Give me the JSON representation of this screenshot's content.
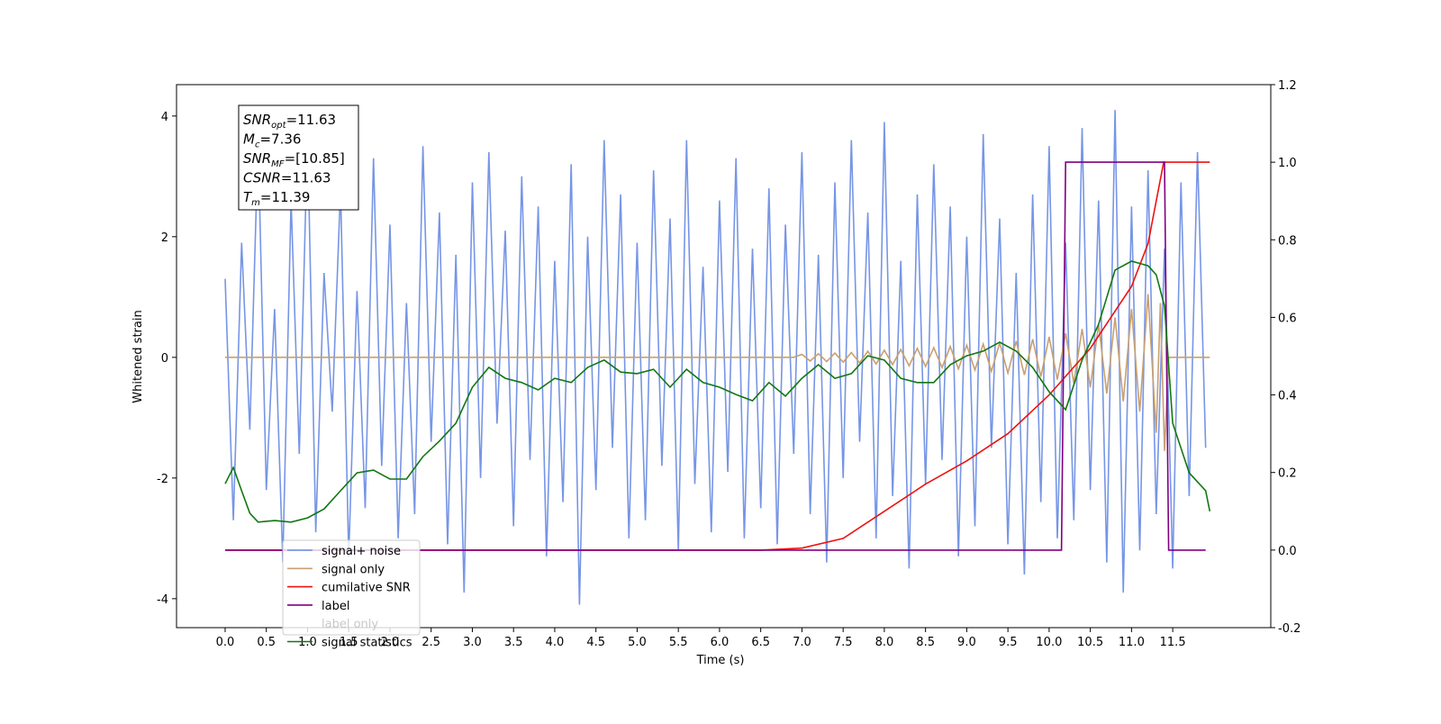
{
  "chart_data": {
    "type": "line",
    "xlabel": "Time (s)",
    "ylabel": "Whitened strain",
    "xlim": [
      -0.59,
      12.69
    ],
    "ylim": [
      -4.48,
      4.52
    ],
    "y2lim": [
      -0.2,
      1.2
    ],
    "xticks": [
      {
        "value": 0,
        "label": "0.0"
      },
      0.5,
      {
        "value": 1,
        "label": "1.0"
      },
      1.5,
      {
        "value": 2,
        "label": "2.0"
      },
      2.5,
      {
        "value": 3,
        "label": "3.0"
      },
      3.5,
      {
        "value": 4,
        "label": "4.0"
      },
      4.5,
      {
        "value": 5,
        "label": "5.0"
      },
      5.5,
      {
        "value": 6,
        "label": "6.0"
      },
      6.5,
      {
        "value": 7,
        "label": "7.0"
      },
      7.5,
      {
        "value": 8,
        "label": "8.0"
      },
      8.5,
      {
        "value": 9,
        "label": "9.0"
      },
      9.5,
      {
        "value": 10,
        "label": "10.0"
      },
      10.5,
      {
        "value": 11,
        "label": "11.0"
      },
      11.5
    ],
    "yticks": [
      -4,
      -2,
      0,
      2,
      4
    ],
    "y2ticks": [
      -0.2,
      {
        "value": 0,
        "label": "0.0"
      },
      0.2,
      0.4,
      0.6,
      0.8,
      {
        "value": 1,
        "label": "1.0"
      },
      1.2
    ],
    "annotation": [
      {
        "main": "SNR",
        "sub": "opt",
        "rest": "=11.63"
      },
      {
        "main": "M",
        "sub": "c",
        "rest": "=7.36"
      },
      {
        "main": "SNR",
        "sub": "MF",
        "rest": "=[10.85]"
      },
      {
        "main": "CSNR",
        "sub": "",
        "rest": "=11.63"
      },
      {
        "main": "T",
        "sub": "m",
        "rest": "=11.39"
      }
    ],
    "legend_ghost": "label only",
    "series": [
      {
        "name": "signal+ noise",
        "color": "#6f8fe5",
        "axis": "y",
        "x": [
          0,
          0.1,
          0.2,
          0.3,
          0.4,
          0.5,
          0.6,
          0.7,
          0.8,
          0.9,
          1,
          1.1,
          1.2,
          1.3,
          1.4,
          1.5,
          1.6,
          1.7,
          1.8,
          1.9,
          2,
          2.1,
          2.2,
          2.3,
          2.4,
          2.5,
          2.6,
          2.7,
          2.8,
          2.9,
          3,
          3.1,
          3.2,
          3.3,
          3.4,
          3.5,
          3.6,
          3.7,
          3.8,
          3.9,
          4,
          4.1,
          4.2,
          4.3,
          4.4,
          4.5,
          4.6,
          4.7,
          4.8,
          4.9,
          5,
          5.1,
          5.2,
          5.3,
          5.4,
          5.5,
          5.6,
          5.7,
          5.8,
          5.9,
          6,
          6.1,
          6.2,
          6.3,
          6.4,
          6.5,
          6.6,
          6.7,
          6.8,
          6.9,
          7,
          7.1,
          7.2,
          7.3,
          7.4,
          7.5,
          7.6,
          7.7,
          7.8,
          7.9,
          8,
          8.1,
          8.2,
          8.3,
          8.4,
          8.5,
          8.6,
          8.7,
          8.8,
          8.9,
          9,
          9.1,
          9.2,
          9.3,
          9.4,
          9.5,
          9.6,
          9.7,
          9.8,
          9.9,
          10,
          10.1,
          10.2,
          10.3,
          10.4,
          10.5,
          10.6,
          10.7,
          10.8,
          10.9,
          11,
          11.1,
          11.2,
          11.3,
          11.4,
          11.5,
          11.6,
          11.7,
          11.8,
          11.9
        ],
        "values": [
          1.3,
          -2.7,
          1.9,
          -1.2,
          3.6,
          -2.2,
          0.8,
          -3.4,
          2.6,
          -1.6,
          3.7,
          -2.9,
          1.4,
          -0.9,
          2.8,
          -3.3,
          1.1,
          -2.5,
          3.3,
          -1.8,
          2.2,
          -3.0,
          0.9,
          -2.6,
          3.5,
          -1.4,
          2.4,
          -3.1,
          1.7,
          -3.9,
          2.9,
          -2.0,
          3.4,
          -1.1,
          2.1,
          -2.8,
          3.0,
          -1.7,
          2.5,
          -3.3,
          1.6,
          -2.4,
          3.2,
          -4.1,
          2.0,
          -2.2,
          3.6,
          -1.5,
          2.7,
          -3.0,
          1.9,
          -2.7,
          3.1,
          -1.8,
          2.3,
          -3.2,
          3.6,
          -2.1,
          1.5,
          -2.9,
          2.6,
          -1.9,
          3.3,
          -3.0,
          1.8,
          -2.5,
          2.8,
          -3.1,
          2.2,
          -1.6,
          3.4,
          -2.6,
          1.7,
          -3.4,
          2.9,
          -2.0,
          3.6,
          -1.4,
          2.4,
          -3.0,
          3.9,
          -2.3,
          1.6,
          -3.5,
          2.7,
          -2.1,
          3.2,
          -1.7,
          2.5,
          -3.3,
          2.0,
          -2.8,
          3.7,
          -1.5,
          2.3,
          -3.1,
          1.4,
          -3.6,
          2.7,
          -2.4,
          3.5,
          -3.0,
          1.9,
          -2.7,
          3.8,
          -2.2,
          2.6,
          -3.4,
          4.1,
          -3.9,
          2.5,
          -3.2,
          3.1,
          -2.6,
          1.8,
          -3.5,
          2.9,
          -2.3,
          3.4,
          -1.5
        ]
      },
      {
        "name": "signal only",
        "color": "#c8a070",
        "axis": "y",
        "x": [
          0,
          6.9,
          7,
          7.1,
          7.2,
          7.3,
          7.4,
          7.5,
          7.6,
          7.7,
          7.8,
          7.9,
          8,
          8.1,
          8.2,
          8.3,
          8.4,
          8.5,
          8.6,
          8.7,
          8.8,
          8.9,
          9,
          9.1,
          9.2,
          9.3,
          9.4,
          9.5,
          9.6,
          9.7,
          9.8,
          9.9,
          10,
          10.1,
          10.2,
          10.3,
          10.4,
          10.5,
          10.6,
          10.7,
          10.8,
          10.9,
          11,
          11.1,
          11.2,
          11.3,
          11.35,
          11.4,
          11.45,
          11.95
        ],
        "values": [
          0,
          0,
          0.05,
          -0.06,
          0.06,
          -0.07,
          0.07,
          -0.08,
          0.08,
          -0.09,
          0.1,
          -0.11,
          0.12,
          -0.12,
          0.13,
          -0.14,
          0.15,
          -0.15,
          0.16,
          -0.17,
          0.18,
          -0.19,
          0.2,
          -0.21,
          0.22,
          -0.23,
          0.24,
          -0.26,
          0.27,
          -0.29,
          0.3,
          -0.32,
          0.34,
          -0.37,
          0.4,
          -0.43,
          0.47,
          -0.5,
          0.55,
          -0.6,
          0.66,
          -0.73,
          0.8,
          -0.9,
          1.05,
          -1.25,
          0.9,
          -1.55,
          0,
          0
        ]
      },
      {
        "name": "cumilative SNR",
        "color": "#ee1111",
        "axis": "y2",
        "x": [
          0,
          6.5,
          7,
          7.5,
          8,
          8.5,
          9,
          9.5,
          10,
          10.5,
          11,
          11.2,
          11.39,
          11.95
        ],
        "values": [
          0,
          0,
          0.005,
          0.03,
          0.1,
          0.17,
          0.23,
          0.3,
          0.4,
          0.52,
          0.68,
          0.79,
          1,
          1
        ]
      },
      {
        "name": "label",
        "color": "#800080",
        "axis": "y2",
        "x": [
          0,
          10.15,
          10.2,
          11.4,
          11.45,
          11.9
        ],
        "values": [
          0,
          0,
          1,
          1,
          0,
          0
        ]
      },
      {
        "name": "signal statistics",
        "color": "#117711",
        "axis": "y2",
        "x": [
          0,
          0.1,
          0.2,
          0.3,
          0.4,
          0.6,
          0.8,
          1,
          1.2,
          1.4,
          1.6,
          1.8,
          2,
          2.2,
          2.4,
          2.6,
          2.8,
          3,
          3.2,
          3.4,
          3.6,
          3.8,
          4,
          4.2,
          4.4,
          4.6,
          4.8,
          5,
          5.2,
          5.4,
          5.6,
          5.8,
          6,
          6.2,
          6.4,
          6.6,
          6.8,
          7,
          7.2,
          7.4,
          7.6,
          7.8,
          8,
          8.2,
          8.4,
          8.6,
          8.8,
          9,
          9.2,
          9.4,
          9.6,
          9.8,
          10,
          10.2,
          10.4,
          10.6,
          10.8,
          11,
          11.2,
          11.3,
          11.4,
          11.5,
          11.7,
          11.9,
          11.95
        ],
        "values": [
          0.171,
          0.213,
          0.153,
          0.095,
          0.072,
          0.076,
          0.072,
          0.083,
          0.106,
          0.153,
          0.199,
          0.206,
          0.183,
          0.183,
          0.241,
          0.281,
          0.327,
          0.42,
          0.471,
          0.443,
          0.432,
          0.413,
          0.443,
          0.432,
          0.471,
          0.49,
          0.459,
          0.455,
          0.466,
          0.42,
          0.466,
          0.432,
          0.42,
          0.401,
          0.385,
          0.432,
          0.397,
          0.443,
          0.478,
          0.443,
          0.455,
          0.501,
          0.49,
          0.443,
          0.432,
          0.432,
          0.478,
          0.501,
          0.513,
          0.536,
          0.513,
          0.471,
          0.408,
          0.362,
          0.49,
          0.582,
          0.722,
          0.745,
          0.733,
          0.71,
          0.629,
          0.327,
          0.199,
          0.153,
          0.1
        ]
      }
    ]
  }
}
